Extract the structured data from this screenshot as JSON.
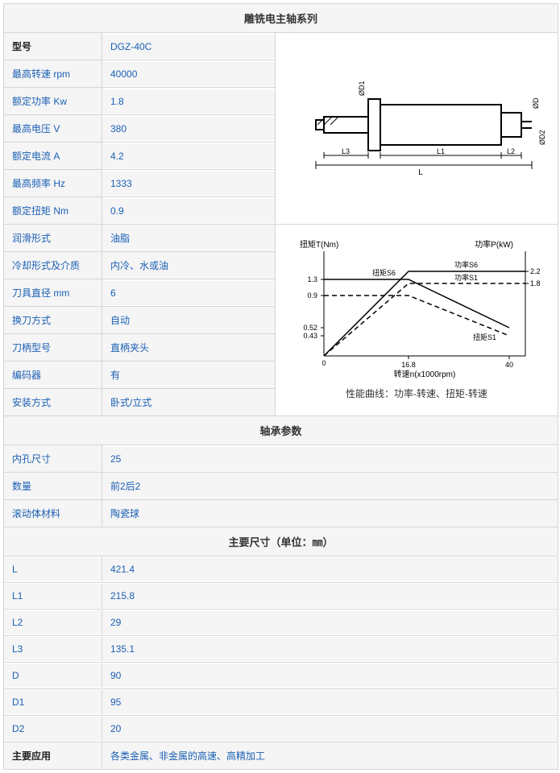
{
  "section1": {
    "title": "雕铣电主轴系列",
    "rows": [
      {
        "label": "型号",
        "value": "DGZ-40C",
        "bold": true
      },
      {
        "label": "最高转速 rpm",
        "value": "40000"
      },
      {
        "label": "额定功率 Kw",
        "value": "1.8"
      },
      {
        "label": "最高电压 V",
        "value": "380"
      },
      {
        "label": "额定电流 A",
        "value": "4.2"
      },
      {
        "label": "最高频率 Hz",
        "value": "1333"
      },
      {
        "label": "额定扭矩 Nm",
        "value": "0.9"
      },
      {
        "label": "润滑形式",
        "value": "油脂"
      },
      {
        "label": "冷却形式及介质",
        "value": "内冷、水或油"
      },
      {
        "label": "刀具直径 mm",
        "value": "6"
      },
      {
        "label": "换刀方式",
        "value": "自动"
      },
      {
        "label": "刀柄型号",
        "value": "直柄夹头"
      },
      {
        "label": "编码器",
        "value": "有"
      },
      {
        "label": "安装方式",
        "value": "卧式/立式"
      }
    ],
    "diagram_caption": "性能曲线：功率-转速、扭矩-转速"
  },
  "section2": {
    "title": "轴承参数",
    "rows": [
      {
        "label": "内孔尺寸",
        "value": "25"
      },
      {
        "label": "数量",
        "value": "前2后2"
      },
      {
        "label": "滚动体材料",
        "value": "陶瓷球"
      }
    ]
  },
  "section3": {
    "title": "主要尺寸（单位：㎜）",
    "rows": [
      {
        "label": "L",
        "value": "421.4"
      },
      {
        "label": "L1",
        "value": "215.8"
      },
      {
        "label": "L2",
        "value": "29"
      },
      {
        "label": "L3",
        "value": "135.1"
      },
      {
        "label": "D",
        "value": "90"
      },
      {
        "label": "D1",
        "value": "95"
      },
      {
        "label": "D2",
        "value": "20"
      },
      {
        "label": "主要应用",
        "value": "各类金属、非金属的高速、高精加工",
        "bold": true
      }
    ]
  },
  "spindle_diagram": {
    "labels": [
      "ØD",
      "ØD1",
      "ØD2",
      "L",
      "L1",
      "L2",
      "L3"
    ],
    "stroke": "#000000",
    "bg": "#ffffff"
  },
  "perf_chart": {
    "xlabel": "转速n(x1000rpm)",
    "ylabel_left": "扭矩T(Nm)",
    "ylabel_right": "功率P(kW)",
    "x_ticks": [
      "0",
      "16.8",
      "40"
    ],
    "y_left_ticks": [
      "0.43",
      "0.52",
      "0.9",
      "1.3"
    ],
    "y_right_ticks": [
      "1.8",
      "2.2"
    ],
    "series_labels": [
      "扭矩S6",
      "扭矩S1",
      "功率S6",
      "功率S1"
    ],
    "stroke": "#000000",
    "bg": "#ffffff"
  }
}
